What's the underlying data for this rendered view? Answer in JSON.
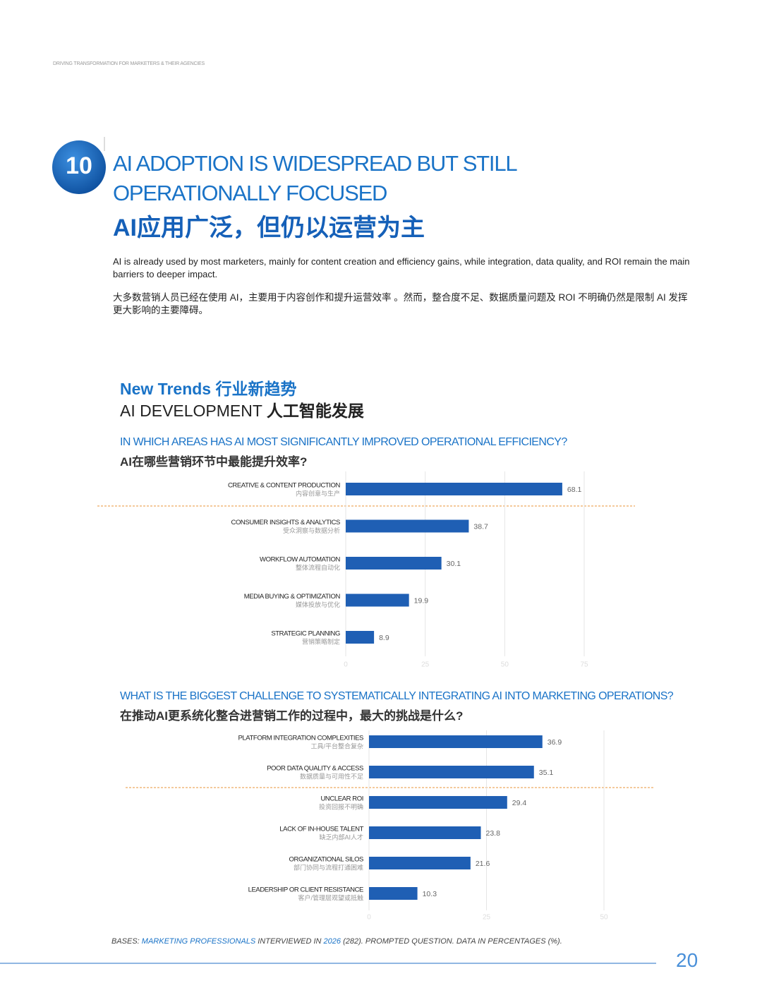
{
  "header": {
    "running_title": "DRIVING TRANSFORMATION FOR MARKETERS & THEIR AGENCIES"
  },
  "section": {
    "number": "10",
    "title_en": [
      "AI ADOPTION IS WIDESPREAD BUT STILL",
      "OPERATIONALLY FOCUSED"
    ],
    "title_zh": "AI应用广泛，但仍以运营为主",
    "intro_en": "AI is already used by most marketers, mainly for content creation and efficiency gains, while integration, data quality, and ROI remain the main barriers to deeper impact.",
    "intro_zh": "大多数营销人员已经在使用 AI，主要用于内容创作和提升运营效率 。然而，整合度不足、数据质量问题及 ROI 不明确仍然是限制 AI 发挥更大影响的主要障碍。"
  },
  "trends": {
    "heading_en": "New Trends",
    "heading_zh": "行业新趋势",
    "sub_en": "AI DEVELOPMENT",
    "sub_zh": "人工智能发展"
  },
  "chart_data": [
    {
      "type": "bar",
      "orientation": "horizontal",
      "title": "IN WHICH AREAS HAS AI MOST SIGNIFICANTLY IMPROVED OPERATIONAL EFFICIENCY?",
      "subtitle": "AI在哪些营销环节中最能提升效率?",
      "categories": [
        "CREATIVE & CONTENT PRODUCTION",
        "CONSUMER INSIGHTS & ANALYTICS",
        "WORKFLOW AUTOMATION",
        "MEDIA BUYING & OPTIMIZATION",
        "STRATEGIC PLANNING"
      ],
      "categories_zh": [
        "内容创意与生产",
        "受众洞察与数据分析",
        "整体流程自动化",
        "媒体投放与优化",
        "营销策略制定"
      ],
      "values": [
        68.1,
        38.7,
        30.1,
        19.9,
        8.9
      ],
      "color": "#1f5fb4",
      "xlim": [
        0,
        75
      ],
      "xticks": [
        0,
        25,
        50,
        75
      ],
      "grid": true
    },
    {
      "type": "bar",
      "orientation": "horizontal",
      "title": "WHAT IS THE BIGGEST CHALLENGE TO SYSTEMATICALLY INTEGRATING AI INTO MARKETING OPERATIONS?",
      "subtitle": "在推动AI更系统化整合进营销工作的过程中，最大的挑战是什么?",
      "categories": [
        "PLATFORM INTEGRATION COMPLEXITIES",
        "POOR DATA QUALITY & ACCESS",
        "UNCLEAR ROI",
        "LACK OF IN-HOUSE TALENT",
        "ORGANIZATIONAL SILOS",
        "LEADERSHIP OR CLIENT RESISTANCE"
      ],
      "categories_zh": [
        "工具/平台整合复杂",
        "数据质量与可用性不足",
        "投资回报不明确",
        "缺乏内部AI人才",
        "部门协同与流程打通困难",
        "客户/管理层观望或抵触"
      ],
      "values": [
        36.9,
        35.1,
        29.4,
        23.8,
        21.6,
        10.3
      ],
      "color": "#1f5fb4",
      "xlim": [
        0,
        50
      ],
      "xticks": [
        0,
        25,
        50
      ],
      "grid": true
    }
  ],
  "footer": {
    "note": [
      "BASES: ",
      "MARKETING PROFESSIONALS",
      " INTERVIEWED IN ",
      "2026",
      " (282). PROMPTED QUESTION. DATA IN PERCENTAGES (%)."
    ],
    "page_number": "20"
  }
}
